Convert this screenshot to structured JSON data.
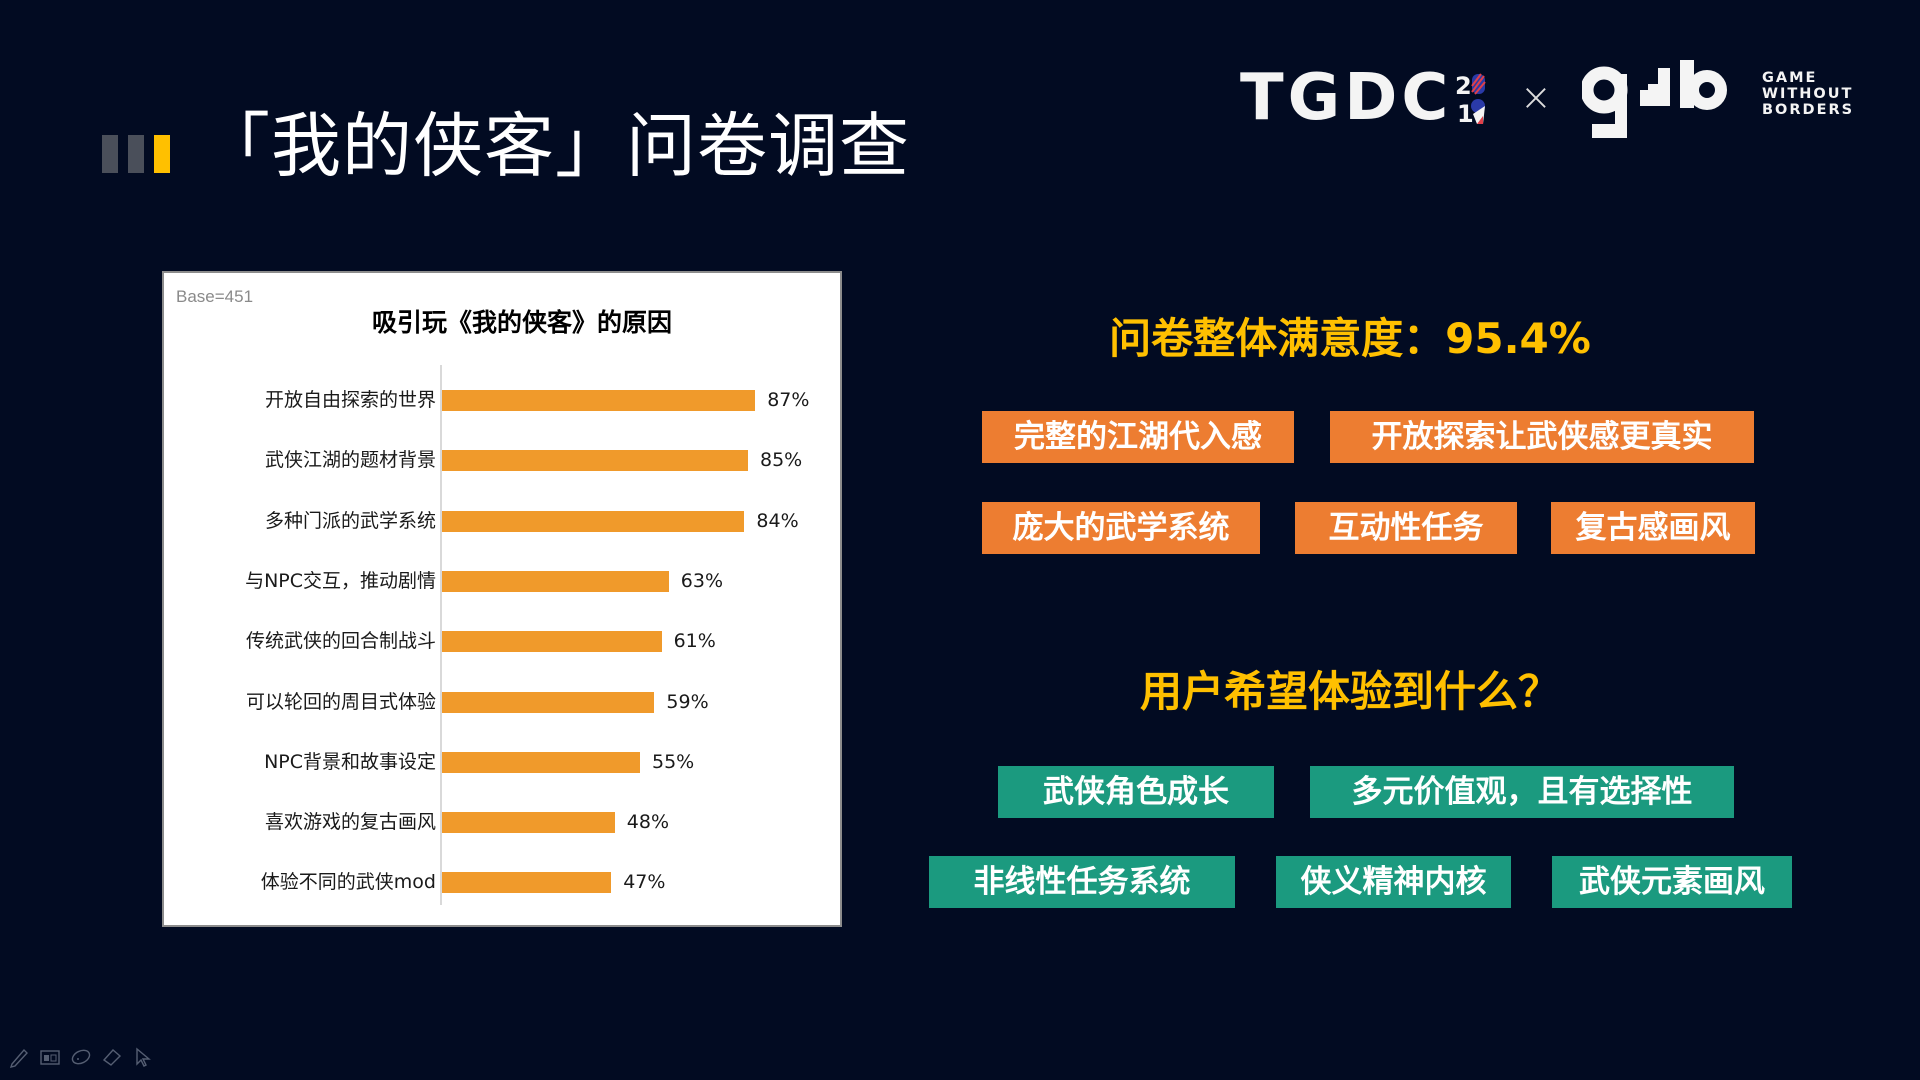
{
  "slide": {
    "title": "「我的侠客」问卷调查",
    "title_bar_colors": [
      "#4a4f5a",
      "#4a4f5a",
      "#ffc000"
    ]
  },
  "logos": {
    "tgdc": "TGDC",
    "tgdc_year_top": "20",
    "tgdc_year_bottom": "19",
    "separator": "×",
    "gwb_mark": "g▄b",
    "gwb_line1": "GAME",
    "gwb_line2": "WITHOUT",
    "gwb_line3": "BORDERS"
  },
  "chart_data": {
    "type": "bar",
    "orientation": "horizontal",
    "title": "吸引玩《我的侠客》的原因",
    "base_note": "Base=451",
    "categories": [
      "开放自由探索的世界",
      "武侠江湖的题材背景",
      "多种门派的武学系统",
      "与NPC交互，推动剧情",
      "传统武侠的回合制战斗",
      "可以轮回的周目式体验",
      "NPC背景和故事设定",
      "喜欢游戏的复古画风",
      "体验不同的武侠mod"
    ],
    "values": [
      87,
      85,
      84,
      63,
      61,
      59,
      55,
      48,
      47
    ],
    "value_labels": [
      "87%",
      "85%",
      "84%",
      "63%",
      "61%",
      "59%",
      "55%",
      "48%",
      "47%"
    ],
    "unit": "%",
    "xlabel": "",
    "ylabel": "",
    "xlim": [
      0,
      100
    ],
    "grid": false,
    "legend": "none",
    "bar_color": "#f09a2b"
  },
  "satisfaction": {
    "label": "问卷整体满意度：95.4%",
    "value": "95.4%"
  },
  "positive_tags": [
    "完整的江湖代入感",
    "开放探索让武侠感更真实",
    "庞大的武学系统",
    "互动性任务",
    "复古感画风"
  ],
  "question": {
    "label": "用户希望体验到什么？"
  },
  "wish_tags": [
    "武侠角色成长",
    "多元价值观，且有选择性",
    "非线性任务系统",
    "侠义精神内核",
    "武侠元素画风"
  ],
  "colors": {
    "background": "#020b22",
    "accent_yellow": "#ffc000",
    "tag_orange": "#ed7d31",
    "tag_green": "#1b9a7f",
    "bar_orange": "#f09a2b"
  },
  "toolbar": {
    "icons": [
      "pen-icon",
      "slides-grid-icon",
      "laser-pointer-icon",
      "eraser-icon",
      "cursor-arrow-icon"
    ]
  }
}
